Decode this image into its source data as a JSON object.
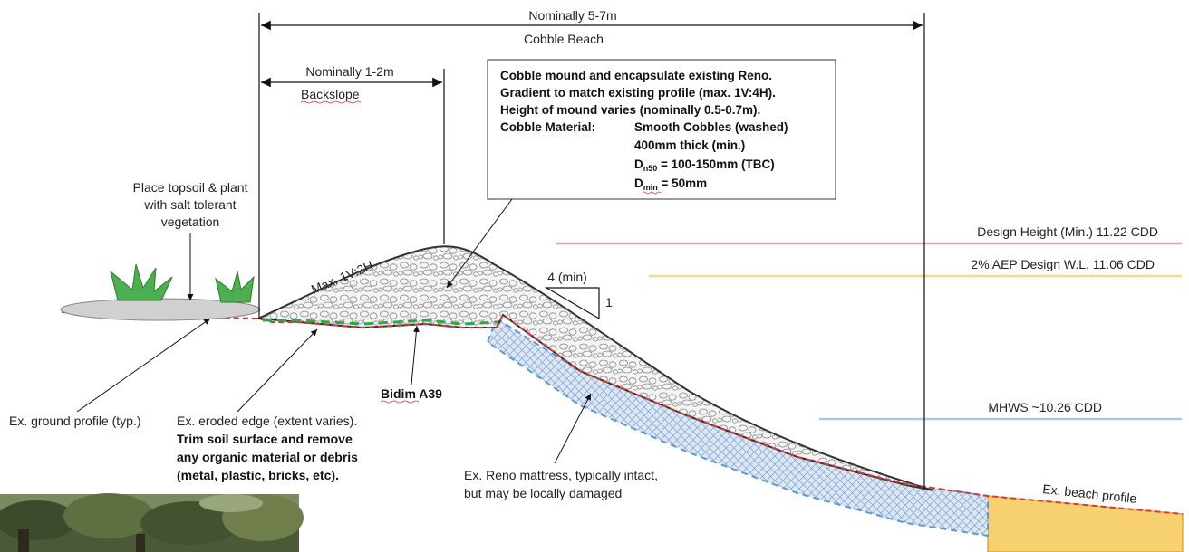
{
  "dimensions": {
    "overall": "Nominally 5-7m",
    "overall_label": "Cobble Beach",
    "backslope": "Nominally 1-2m",
    "backslope_label": "Backslope"
  },
  "note_box": {
    "line1": "Cobble mound and encapsulate existing Reno.",
    "line2": "Gradient to match existing profile (max. 1V:4H).",
    "line3": "Height of mound varies (nominally 0.5-0.7m).",
    "material_label": "Cobble Material:",
    "material_1": "Smooth Cobbles (washed)",
    "material_2": "400mm thick (min.)",
    "dn50_main": "D",
    "dn50_sub": "n50",
    "dn50_value": " = 100-150mm (TBC)",
    "dmin_main": "D",
    "dmin_sub": "min",
    "dmin_value": " = 50mm"
  },
  "labels": {
    "topsoil_1": "Place topsoil & plant",
    "topsoil_2": "with salt tolerant",
    "topsoil_3": "vegetation",
    "max_slope": "Max. 1V:2H",
    "slope_h": "4 (min)",
    "slope_v": "1",
    "ground_profile": "Ex. ground profile (typ.)",
    "eroded_1": "Ex. eroded edge  (extent varies).",
    "eroded_2": "Trim soil surface and remove",
    "eroded_3": "any organic material or debris",
    "eroded_4": "(metal, plastic, bricks, etc).",
    "bidim": "Bidim A39",
    "reno_1": "Ex. Reno mattress, typically intact,",
    "reno_2": "but may be locally damaged",
    "beach_profile": "Ex. beach profile"
  },
  "levels": {
    "design_height": "Design Height (Min.)  11.22 CDD",
    "aep": "2% AEP Design W.L.  11.06 CDD",
    "mhws": "MHWS ~10.26 CDD"
  },
  "colors": {
    "design_height": "#e8a0a8",
    "aep": "#f6d98a",
    "mhws": "#a9c8e8",
    "geotextile": "#2fa84a",
    "existing_profile": "#d23a3a",
    "reno_fill": "#dbe7f5",
    "reno_edge": "#5b9bd5",
    "beach_fill": "#f7d070",
    "topsoil": "#d0d0d0",
    "plant": "#4caf50"
  }
}
